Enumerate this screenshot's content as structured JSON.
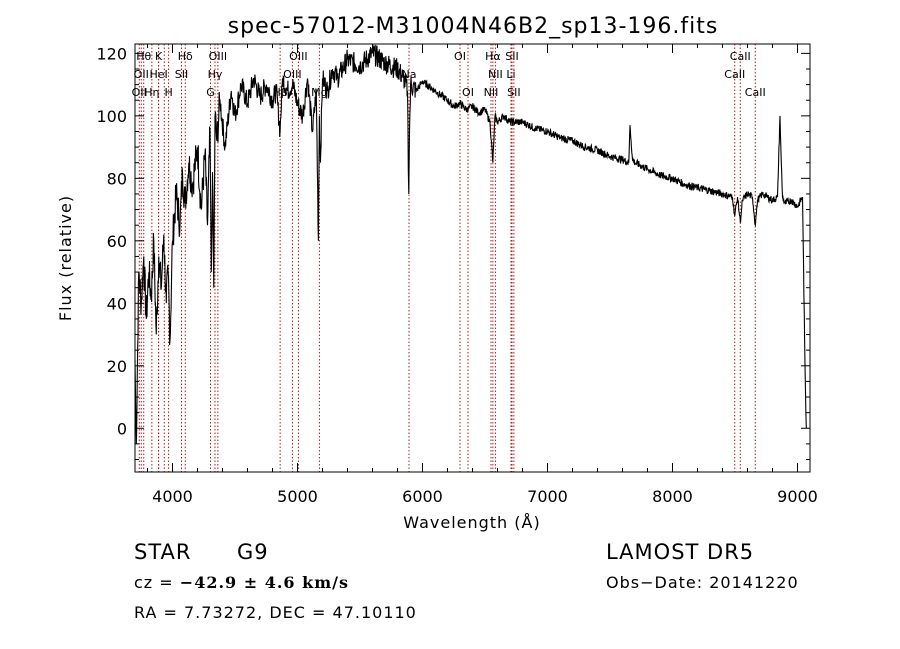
{
  "chart_data": {
    "type": "line",
    "title": "spec-57012-M31004N46B2_sp13-196.fits",
    "xlabel": "Wavelength (Å)",
    "ylabel": "Flux (relative)",
    "xlim": [
      3700,
      9100
    ],
    "ylim": [
      -14,
      123
    ],
    "xticks": [
      4000,
      5000,
      6000,
      7000,
      8000,
      9000
    ],
    "yticks": [
      0,
      20,
      40,
      60,
      80,
      100,
      120
    ],
    "grid": false,
    "series": [
      {
        "x": [
          3700,
          3710,
          3730,
          3750,
          3770,
          3790,
          3810,
          3830,
          3850,
          3870,
          3890,
          3910,
          3930,
          3950,
          3965,
          3980,
          4000,
          4030,
          4060,
          4080,
          4100,
          4130,
          4160,
          4200,
          4230,
          4260,
          4280,
          4300,
          4310,
          4320,
          4330,
          4340,
          4355,
          4380,
          4420,
          4470,
          4500,
          4550,
          4600,
          4650,
          4700,
          4750,
          4800,
          4830,
          4861,
          4880,
          4920,
          4960,
          5000,
          5040,
          5080,
          5120,
          5150,
          5167,
          5175,
          5183,
          5200,
          5240,
          5280,
          5320,
          5400,
          5500,
          5600,
          5700,
          5800,
          5850,
          5880,
          5890,
          5896,
          5905,
          5950,
          6000,
          6100,
          6200,
          6250,
          6300,
          6350,
          6400,
          6450,
          6500,
          6540,
          6563,
          6580,
          6600,
          6650,
          6700,
          6800,
          6900,
          7000,
          7100,
          7200,
          7300,
          7400,
          7500,
          7600,
          7650,
          7660,
          7680,
          7700,
          7800,
          7900,
          8000,
          8100,
          8200,
          8300,
          8400,
          8480,
          8498,
          8520,
          8542,
          8560,
          8600,
          8640,
          8662,
          8680,
          8720,
          8760,
          8800,
          8840,
          8860,
          8870,
          8880,
          8900,
          8950,
          9000,
          9040,
          9060,
          9070
        ],
        "y": [
          22,
          -5,
          50,
          40,
          55,
          35,
          50,
          42,
          60,
          30,
          55,
          45,
          62,
          40,
          50,
          28,
          60,
          75,
          65,
          82,
          72,
          85,
          78,
          90,
          70,
          88,
          65,
          95,
          50,
          82,
          45,
          100,
          92,
          105,
          90,
          108,
          100,
          110,
          104,
          112,
          106,
          110,
          105,
          108,
          95,
          112,
          108,
          110,
          104,
          100,
          112,
          95,
          108,
          60,
          100,
          85,
          112,
          108,
          115,
          112,
          118,
          116,
          120,
          117,
          115,
          112,
          108,
          75,
          95,
          110,
          108,
          111,
          108,
          105,
          103,
          104,
          102,
          103,
          101,
          102,
          98,
          85,
          100,
          98,
          100,
          98,
          98,
          96,
          95,
          93,
          92,
          90,
          89,
          87,
          86,
          85,
          97,
          86,
          85,
          83,
          81,
          80,
          78,
          77,
          76,
          75,
          74,
          68,
          74,
          66,
          73,
          75,
          74,
          65,
          73,
          75,
          74,
          73,
          74,
          100,
          85,
          74,
          72,
          73,
          71,
          74,
          20,
          0
        ]
      }
    ],
    "lines": [
      {
        "w": 3734,
        "label": "OII",
        "row": 2
      },
      {
        "w": 3750,
        "label": "OII",
        "row": 1
      },
      {
        "w": 3770,
        "label": "Hθ",
        "row": 0
      },
      {
        "w": 3835,
        "label": "Hη",
        "row": 2
      },
      {
        "w": 3889,
        "label": "K",
        "row": 0
      },
      {
        "w": 3889,
        "label": "HeI",
        "row": 1
      },
      {
        "w": 3934,
        "label": "",
        "row": 0
      },
      {
        "w": 3969,
        "label": "H",
        "row": 2
      },
      {
        "w": 4072,
        "label": "SII",
        "row": 1
      },
      {
        "w": 4102,
        "label": "Hδ",
        "row": 0
      },
      {
        "w": 4304,
        "label": "G",
        "row": 2
      },
      {
        "w": 4340,
        "label": "Hγ",
        "row": 1
      },
      {
        "w": 4363,
        "label": "OIII",
        "row": 0
      },
      {
        "w": 4861,
        "label": "Hβ",
        "row": 2
      },
      {
        "w": 4959,
        "label": "OIII",
        "row": 1
      },
      {
        "w": 5007,
        "label": "OIII",
        "row": 0
      },
      {
        "w": 5175,
        "label": "Mg",
        "row": 2
      },
      {
        "w": 5892,
        "label": "Na",
        "row": 1
      },
      {
        "w": 6300,
        "label": "OI",
        "row": 0
      },
      {
        "w": 6364,
        "label": "OI",
        "row": 2
      },
      {
        "w": 6548,
        "label": "NII",
        "row": 2
      },
      {
        "w": 6563,
        "label": "Hα",
        "row": 0
      },
      {
        "w": 6583,
        "label": "NII",
        "row": 1
      },
      {
        "w": 6708,
        "label": "Li",
        "row": 1
      },
      {
        "w": 6716,
        "label": "SII",
        "row": 0
      },
      {
        "w": 6731,
        "label": "SII",
        "row": 2
      },
      {
        "w": 8498,
        "label": "CaII",
        "row": 1
      },
      {
        "w": 8542,
        "label": "CaII",
        "row": 0
      },
      {
        "w": 8662,
        "label": "CaII",
        "row": 2
      }
    ]
  },
  "info": {
    "class": "STAR",
    "subclass": "G9",
    "survey": "LAMOST  DR5",
    "cz_label": "cz = ",
    "cz_value": "−42.9 ± 4.6 km/s",
    "obs_date": "Obs−Date: 20141220",
    "radec": "RA =   7.73272, DEC =  47.10110"
  }
}
